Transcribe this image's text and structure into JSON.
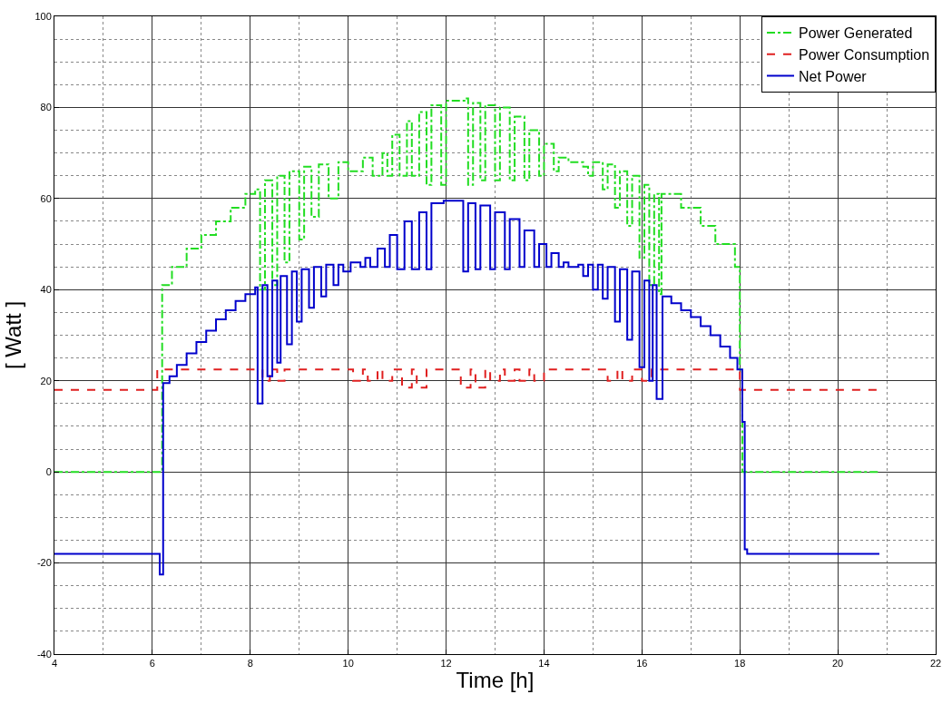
{
  "chart_data": {
    "type": "step",
    "xlabel": "Time [h]",
    "ylabel": "[ Watt ]",
    "xlim": [
      4,
      22
    ],
    "xticks": [
      4,
      6,
      8,
      10,
      12,
      14,
      16,
      18,
      20,
      22
    ],
    "ylim": [
      -40,
      100
    ],
    "yticks": [
      -40,
      -20,
      0,
      20,
      40,
      60,
      80,
      100
    ],
    "grid": true,
    "legend": "top right",
    "marker": "none",
    "series": [
      {
        "name": "Power Generated",
        "color": "#22dd22",
        "line_style": "dashdot",
        "x": [
          4,
          6.2,
          6.4,
          6.7,
          7.0,
          7.3,
          7.6,
          7.9,
          8.1,
          8.2,
          8.3,
          8.45,
          8.55,
          8.7,
          8.8,
          9.0,
          9.1,
          9.25,
          9.4,
          9.6,
          9.8,
          10.0,
          10.3,
          10.5,
          10.7,
          10.8,
          10.9,
          11.05,
          11.2,
          11.3,
          11.45,
          11.6,
          11.7,
          11.9,
          12.0,
          12.4,
          12.45,
          12.55,
          12.7,
          12.8,
          13.0,
          13.1,
          13.3,
          13.4,
          13.6,
          13.7,
          13.9,
          14.0,
          14.2,
          14.3,
          14.5,
          14.8,
          14.9,
          15.0,
          15.2,
          15.3,
          15.45,
          15.55,
          15.7,
          15.8,
          15.95,
          16.05,
          16.15,
          16.25,
          16.35,
          16.4,
          16.8,
          17.2,
          17.5,
          17.9,
          18.0,
          18.05,
          20.85
        ],
        "values": [
          0,
          41,
          45,
          49,
          52,
          55,
          58,
          61,
          62,
          40,
          64,
          41,
          65,
          46,
          66,
          51,
          67,
          56,
          67.5,
          60,
          68,
          66,
          69,
          65,
          70,
          65,
          74,
          65,
          77,
          65,
          79,
          63,
          80.5,
          63,
          81.5,
          82,
          63,
          81,
          64,
          80.5,
          64,
          80,
          64,
          78,
          64,
          75,
          65,
          72,
          66,
          69,
          68,
          67,
          65,
          68,
          62,
          67.5,
          58,
          66,
          54,
          65,
          47,
          63,
          41,
          61,
          39,
          61,
          58,
          54,
          50,
          45,
          22,
          0,
          0
        ]
      },
      {
        "name": "Power Consumption",
        "color": "#e02020",
        "line_style": "dashed",
        "x": [
          4,
          6.1,
          8.25,
          8.4,
          8.55,
          8.7,
          10.1,
          10.3,
          10.4,
          10.6,
          10.7,
          10.9,
          11.1,
          11.3,
          11.4,
          11.6,
          12.3,
          12.5,
          12.6,
          12.8,
          12.9,
          13.1,
          13.2,
          13.4,
          13.5,
          13.7,
          13.8,
          14.0,
          15.3,
          15.5,
          15.6,
          15.8,
          16.0,
          16.2,
          18.0,
          20.85
        ],
        "values": [
          18,
          22.5,
          20,
          22.5,
          20,
          22.5,
          20,
          22.5,
          20,
          22.5,
          20,
          22.5,
          18.5,
          22.5,
          18.5,
          22.5,
          18.5,
          22.5,
          18.5,
          22.5,
          20,
          22.5,
          20,
          22.5,
          20,
          22.5,
          20,
          22.5,
          20,
          22.5,
          20,
          22.5,
          20,
          22.5,
          18,
          18
        ]
      },
      {
        "name": "Net Power",
        "color": "#0000cc",
        "line_style": "solid",
        "x": [
          4,
          6.15,
          6.22,
          6.35,
          6.5,
          6.7,
          6.9,
          7.1,
          7.3,
          7.5,
          7.7,
          7.9,
          8.1,
          8.15,
          8.25,
          8.35,
          8.45,
          8.55,
          8.62,
          8.75,
          8.85,
          8.95,
          9.05,
          9.2,
          9.3,
          9.45,
          9.55,
          9.7,
          9.8,
          9.9,
          10.05,
          10.25,
          10.35,
          10.45,
          10.6,
          10.75,
          10.85,
          11.0,
          11.15,
          11.3,
          11.45,
          11.6,
          11.7,
          11.95,
          12.25,
          12.35,
          12.45,
          12.6,
          12.7,
          12.9,
          13.0,
          13.2,
          13.3,
          13.5,
          13.6,
          13.8,
          13.9,
          14.05,
          14.15,
          14.3,
          14.4,
          14.5,
          14.7,
          14.8,
          14.9,
          15.0,
          15.1,
          15.2,
          15.3,
          15.45,
          15.55,
          15.7,
          15.8,
          15.95,
          16.05,
          16.15,
          16.22,
          16.3,
          16.42,
          16.6,
          16.8,
          17.0,
          17.2,
          17.4,
          17.6,
          17.8,
          17.95,
          18.05,
          18.1,
          18.15,
          20.85
        ],
        "values": [
          -18,
          -22.5,
          19.5,
          21,
          23.5,
          26,
          28.5,
          31,
          33.5,
          35.5,
          37.5,
          39,
          40.5,
          15,
          41,
          21,
          42,
          24,
          43,
          28,
          44,
          33,
          44.5,
          36,
          45,
          38.5,
          45.5,
          41,
          45.5,
          44,
          46,
          45,
          47,
          45,
          49,
          45,
          52,
          44.5,
          55,
          44.5,
          57,
          44.5,
          59,
          59.5,
          59.5,
          44,
          59,
          44.5,
          58.5,
          44.5,
          57,
          44.5,
          55.5,
          45,
          53,
          45,
          50,
          45,
          48,
          45,
          46,
          45,
          45.5,
          43,
          45.5,
          40,
          45.5,
          38,
          45,
          33,
          44.5,
          29,
          44,
          23,
          42,
          20,
          41,
          16,
          38.5,
          37,
          35.5,
          34,
          32,
          30,
          27.5,
          25,
          22.5,
          11,
          -17,
          -18,
          -18
        ]
      }
    ]
  }
}
